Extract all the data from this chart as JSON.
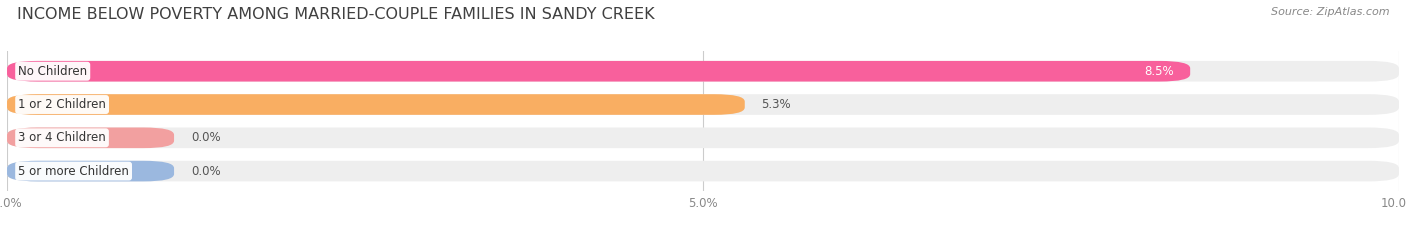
{
  "title": "INCOME BELOW POVERTY AMONG MARRIED-COUPLE FAMILIES IN SANDY CREEK",
  "source": "Source: ZipAtlas.com",
  "categories": [
    "No Children",
    "1 or 2 Children",
    "3 or 4 Children",
    "5 or more Children"
  ],
  "values": [
    8.5,
    5.3,
    0.0,
    0.0
  ],
  "bar_colors": [
    "#F8609C",
    "#F9AE62",
    "#F2A0A0",
    "#9BB8DF"
  ],
  "xlim": [
    0,
    10.0
  ],
  "xticks": [
    0.0,
    5.0,
    10.0
  ],
  "xticklabels": [
    "0.0%",
    "5.0%",
    "10.0%"
  ],
  "bar_height": 0.62,
  "background_color": "#ffffff",
  "bar_bg_color": "#eeeeee",
  "title_fontsize": 11.5,
  "label_fontsize": 8.5,
  "value_fontsize": 8.5,
  "source_fontsize": 8,
  "zero_bar_width": 1.2
}
